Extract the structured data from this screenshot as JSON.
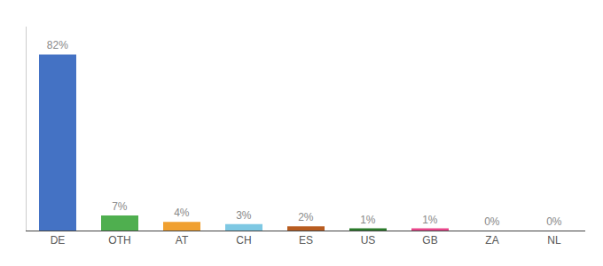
{
  "chart_data": {
    "type": "bar",
    "categories": [
      "DE",
      "OTH",
      "AT",
      "CH",
      "ES",
      "US",
      "GB",
      "ZA",
      "NL"
    ],
    "values": [
      82,
      7,
      4,
      3,
      2,
      1,
      1,
      0,
      0
    ],
    "value_labels": [
      "82%",
      "7%",
      "4%",
      "3%",
      "2%",
      "1%",
      "1%",
      "0%",
      "0%"
    ],
    "colors": [
      "#4472c4",
      "#4faf4f",
      "#f0a030",
      "#7ec8e3",
      "#b85c20",
      "#2a7a2a",
      "#e8458a",
      "#bbbbbb",
      "#bbbbbb"
    ],
    "ylim": [
      0,
      95
    ],
    "grid": false,
    "data_labels": true,
    "tick_labels": "x"
  }
}
